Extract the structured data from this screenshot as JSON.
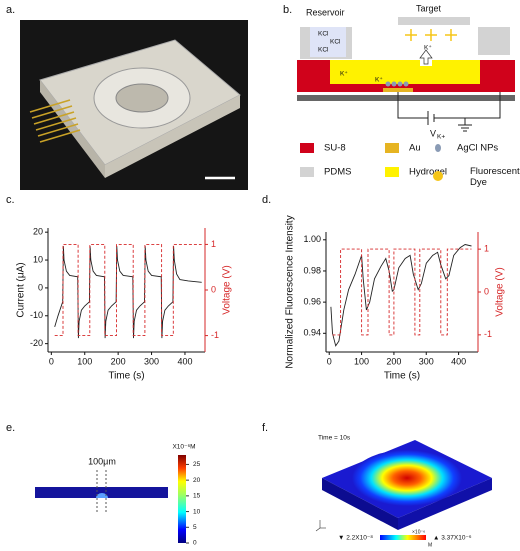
{
  "panel_labels": [
    "a.",
    "b.",
    "c.",
    "d.",
    "e.",
    "f."
  ],
  "b": {
    "reservoir": "Reservoir",
    "target": "Target",
    "kcl": [
      "KCl",
      "KCl",
      "KCl"
    ],
    "ions": [
      "K⁺",
      "K⁺",
      "K⁺"
    ],
    "voltage": "V",
    "voltage_sub": "K+",
    "legend": [
      {
        "label": "SU-8",
        "color": "#d0021b"
      },
      {
        "label": "Au",
        "color": "#e6b422"
      },
      {
        "label": "AgCl NPs",
        "color": "#8a9bb5"
      },
      {
        "label": "PDMS",
        "color": "#d3d3d3"
      },
      {
        "label": "Hydrogel",
        "color": "#fff200"
      },
      {
        "label": "Fluorescent Dye",
        "color": "#f5c518"
      }
    ]
  },
  "chart_data": [
    {
      "type": "line",
      "ylabel": "Current (μA)",
      "y2label": "Voltage (V)",
      "xlabel": "Time (s)",
      "xlim": [
        -10,
        460
      ],
      "xticks": [
        0,
        100,
        200,
        300,
        400
      ],
      "ylim": [
        -23,
        21.5
      ],
      "yticks": [
        -20,
        -10,
        0,
        10,
        20
      ],
      "y2lim": [
        -1.36,
        1.36
      ],
      "y2ticks": [
        -1,
        0,
        1
      ],
      "series": [
        {
          "color": "#222222",
          "style": "solid",
          "x": [
            10,
            20,
            34,
            36,
            38,
            45,
            55,
            79,
            81,
            83,
            90,
            100,
            114,
            116,
            118,
            125,
            135,
            159,
            161,
            163,
            170,
            180,
            194,
            196,
            198,
            205,
            215,
            244,
            246,
            248,
            255,
            265,
            279,
            281,
            283,
            290,
            300,
            329,
            331,
            333,
            340,
            350,
            364,
            366,
            368,
            375,
            385,
            410,
            450
          ],
          "values": [
            -14,
            -10,
            -5,
            15,
            10,
            6,
            4.5,
            4,
            -18,
            -12,
            -8,
            -6.5,
            -5,
            15,
            10,
            6,
            4.5,
            4,
            -18,
            -12,
            -8,
            -6.5,
            -5,
            15,
            10,
            6,
            4.5,
            4,
            -18,
            -12,
            -8,
            -6.5,
            -5,
            15,
            10,
            6,
            4.5,
            4,
            -18,
            -12,
            -8,
            -6.5,
            -5,
            15,
            10,
            5,
            3,
            2.5,
            2
          ]
        },
        {
          "color": "#d62728",
          "style": "dashed",
          "axis": "y2",
          "x": [
            10,
            35,
            35,
            80,
            80,
            115,
            115,
            160,
            160,
            195,
            195,
            245,
            245,
            280,
            280,
            330,
            330,
            365,
            365,
            450
          ],
          "values": [
            -1,
            -1,
            1,
            1,
            -1,
            -1,
            1,
            1,
            -1,
            -1,
            1,
            1,
            -1,
            -1,
            1,
            1,
            -1,
            -1,
            1,
            1
          ]
        }
      ]
    },
    {
      "type": "line",
      "ylabel": "Normalized Fluorescence Intensity",
      "y2label": "Voltage (V)",
      "xlabel": "Time (s)",
      "xlim": [
        -10,
        460
      ],
      "xticks": [
        0,
        100,
        200,
        300,
        400
      ],
      "ylim": [
        0.928,
        1.005
      ],
      "yticks": [
        0.94,
        0.96,
        0.98,
        {
          "value": 1,
          "label": "1.00"
        }
      ],
      "y2lim": [
        -1.4,
        1.4
      ],
      "y2ticks": [
        -1,
        0,
        1
      ],
      "series": [
        {
          "color": "#222222",
          "style": "solid",
          "x": [
            5,
            10,
            20,
            30,
            45,
            60,
            80,
            100,
            105,
            115,
            125,
            140,
            160,
            175,
            185,
            195,
            200,
            215,
            235,
            250,
            260,
            275,
            285,
            300,
            320,
            335,
            345,
            360,
            370,
            385,
            405,
            420,
            440
          ],
          "values": [
            0.957,
            0.94,
            0.932,
            0.935,
            0.955,
            0.968,
            0.978,
            0.99,
            0.975,
            0.955,
            0.96,
            0.975,
            0.983,
            0.988,
            0.98,
            0.967,
            0.968,
            0.982,
            0.988,
            0.99,
            0.978,
            0.968,
            0.972,
            0.985,
            0.99,
            0.992,
            0.984,
            0.975,
            0.977,
            0.99,
            0.995,
            0.997,
            0.996
          ]
        },
        {
          "color": "#d62728",
          "style": "dashed",
          "axis": "y2",
          "x": [
            10,
            35,
            35,
            100,
            100,
            120,
            120,
            185,
            185,
            200,
            200,
            265,
            265,
            280,
            280,
            345,
            345,
            365,
            365,
            440
          ],
          "values": [
            -1,
            -1,
            1,
            1,
            -1,
            -1,
            1,
            1,
            -1,
            -1,
            1,
            1,
            -1,
            -1,
            1,
            1,
            -1,
            -1,
            1,
            1
          ]
        }
      ]
    }
  ],
  "e": {
    "unit": "X10⁻⁶M",
    "lim": [
      0,
      28
    ],
    "ticks": [
      0,
      5,
      10,
      15,
      20,
      25
    ],
    "scale": "100μm"
  },
  "f": {
    "time": "Time = 10s",
    "min": "▼ 2.2X10⁻⁸",
    "max": "▲ 3.37X10⁻⁶",
    "unit": "×10⁻⁶",
    "unit2": "M"
  }
}
